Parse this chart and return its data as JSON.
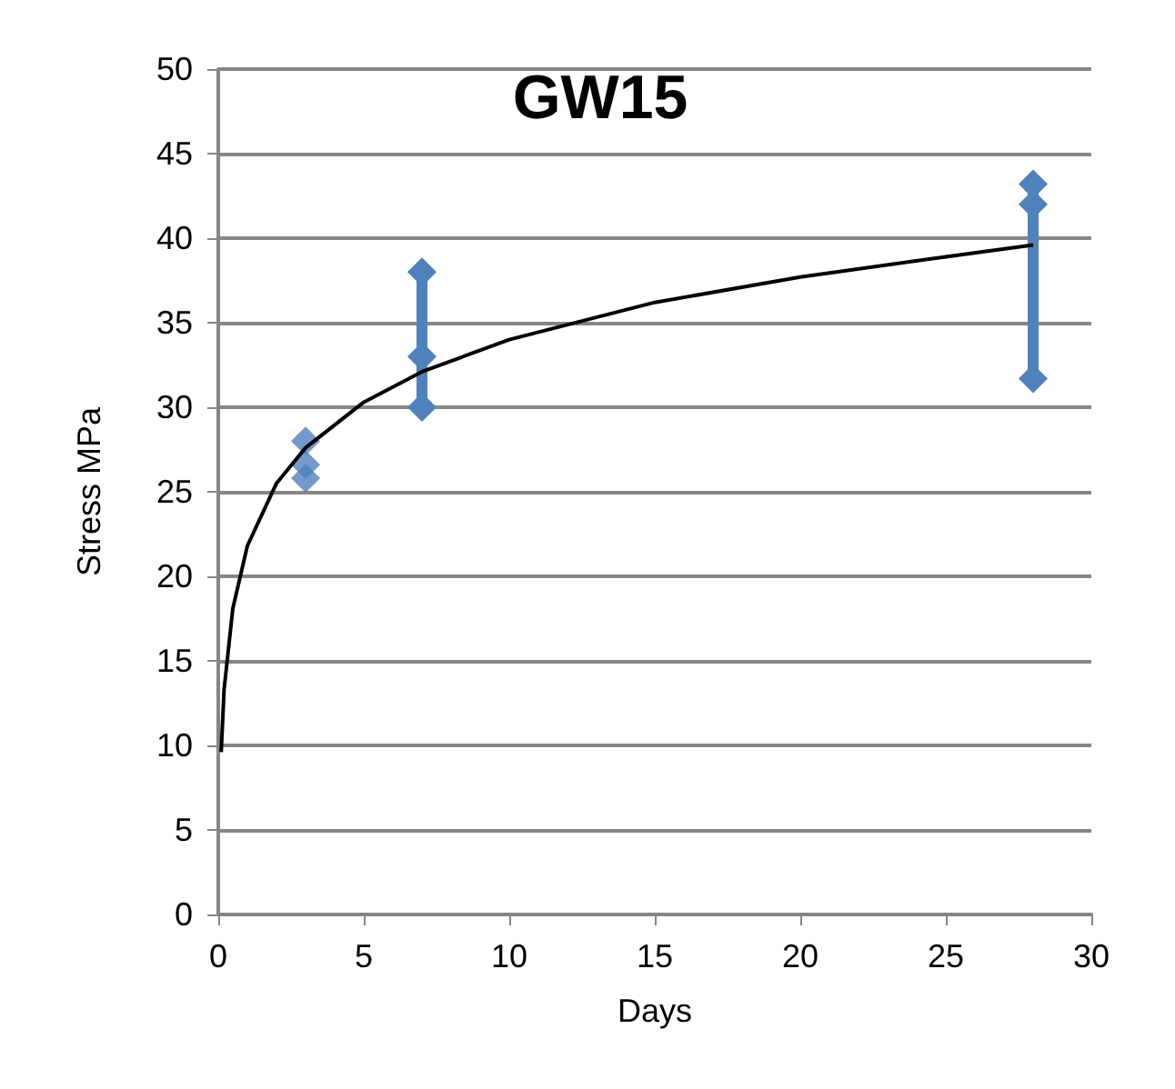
{
  "chart_data": {
    "type": "line",
    "title": "GW15",
    "xlabel": "Days",
    "ylabel": "Stress MPa",
    "series": [
      {
        "type": "scatter",
        "color": "#4f81bd",
        "x": [
          3,
          3,
          3
        ],
        "values": [
          28,
          26.6,
          25.8
        ],
        "marker": "diamond"
      },
      {
        "color": "#4f81bd",
        "x": [
          7,
          7,
          7
        ],
        "values": [
          38,
          33,
          30
        ],
        "marker": "diamond"
      },
      {
        "color": "#4f81bd",
        "x": [
          28,
          28,
          28
        ],
        "values": [
          43.2,
          42,
          31.7
        ],
        "marker": "diamond"
      },
      {
        "color": "#000000",
        "x": [
          0.1,
          0.2,
          0.5,
          1,
          2,
          3,
          5,
          7,
          10,
          15,
          20,
          25,
          28
        ],
        "values": [
          9.6,
          13.3,
          18.1,
          21.8,
          25.5,
          27.6,
          30.3,
          32.1,
          34.0,
          36.2,
          37.7,
          38.9,
          39.6
        ],
        "marker": "none"
      }
    ],
    "xlim": [
      0,
      30
    ],
    "xticks": [
      0,
      5,
      10,
      15,
      20,
      25,
      30
    ],
    "ylim": [
      0,
      50
    ],
    "yticks": [
      0,
      5,
      10,
      15,
      20,
      25,
      30,
      35,
      40,
      45,
      50
    ],
    "grid": "y"
  }
}
